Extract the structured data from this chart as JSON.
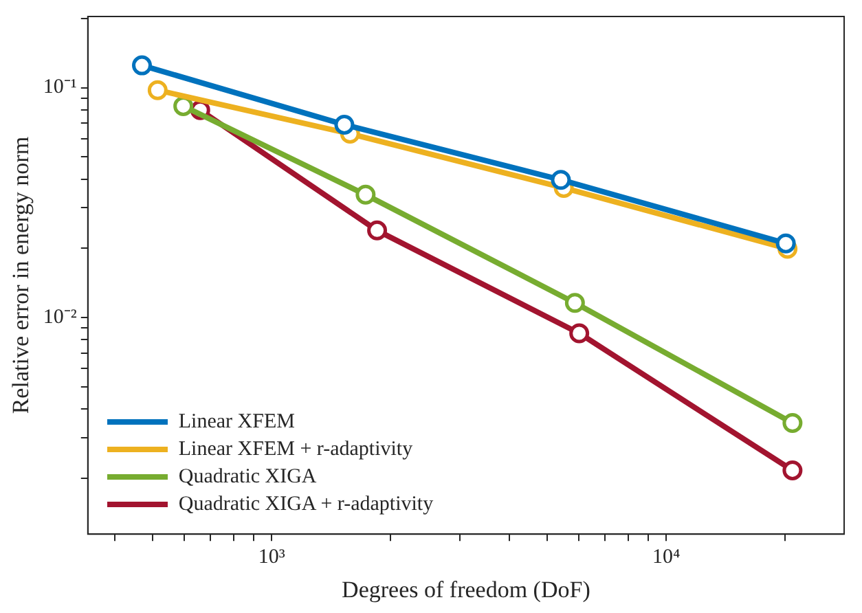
{
  "chart_data": {
    "type": "line",
    "xlabel": "Degrees of freedom (DoF)",
    "ylabel": "Relative error in energy norm",
    "log": "xy",
    "grid": false,
    "legend": "bottom left",
    "marker": "circle",
    "line_style": "solid",
    "xlim": [
      342,
      28250
    ],
    "ylim": [
      0.00114,
      0.204
    ],
    "xticks": [
      {
        "value": 400,
        "label": null
      },
      {
        "value": 500,
        "label": null
      },
      {
        "value": 600,
        "label": null
      },
      {
        "value": 700,
        "label": null
      },
      {
        "value": 800,
        "label": null
      },
      {
        "value": 900,
        "label": null
      },
      {
        "value": 1000,
        "label": "10³"
      },
      {
        "value": 2000,
        "label": null
      },
      {
        "value": 3000,
        "label": null
      },
      {
        "value": 4000,
        "label": null
      },
      {
        "value": 5000,
        "label": null
      },
      {
        "value": 6000,
        "label": null
      },
      {
        "value": 7000,
        "label": null
      },
      {
        "value": 8000,
        "label": null
      },
      {
        "value": 9000,
        "label": null
      },
      {
        "value": 10000,
        "label": "10⁴"
      },
      {
        "value": 20000,
        "label": null
      }
    ],
    "yticks": [
      {
        "value": 0.002,
        "label": null
      },
      {
        "value": 0.003,
        "label": null
      },
      {
        "value": 0.004,
        "label": null
      },
      {
        "value": 0.005,
        "label": null
      },
      {
        "value": 0.006,
        "label": null
      },
      {
        "value": 0.007,
        "label": null
      },
      {
        "value": 0.008,
        "label": null
      },
      {
        "value": 0.009,
        "label": null
      },
      {
        "value": 0.01,
        "label": "10⁻²"
      },
      {
        "value": 0.02,
        "label": null
      },
      {
        "value": 0.03,
        "label": null
      },
      {
        "value": 0.04,
        "label": null
      },
      {
        "value": 0.05,
        "label": null
      },
      {
        "value": 0.06,
        "label": null
      },
      {
        "value": 0.07,
        "label": null
      },
      {
        "value": 0.08,
        "label": null
      },
      {
        "value": 0.09,
        "label": null
      },
      {
        "value": 0.1,
        "label": "10⁻¹"
      },
      {
        "value": 0.2,
        "label": null
      }
    ],
    "series": [
      {
        "name": "Linear XFEM",
        "color": "#0072bd",
        "x": [
          469,
          1528,
          5408,
          20100
        ],
        "values": [
          0.125,
          0.069,
          0.0397,
          0.021
        ]
      },
      {
        "name": "Linear XFEM + r-adaptivity",
        "color": "#edb120",
        "x": [
          514,
          1580,
          5500,
          20300
        ],
        "values": [
          0.0975,
          0.063,
          0.0366,
          0.0199
        ]
      },
      {
        "name": "Quadratic XIGA",
        "color": "#77ac30",
        "x": [
          597,
          1730,
          5870,
          20900
        ],
        "values": [
          0.0831,
          0.0342,
          0.01157,
          0.00347
        ]
      },
      {
        "name": "Quadratic XIGA + r-adaptivity",
        "color": "#a2142f",
        "x": [
          659,
          1850,
          6020,
          20900
        ],
        "values": [
          0.0798,
          0.0239,
          0.00853,
          0.00216
        ]
      }
    ]
  }
}
